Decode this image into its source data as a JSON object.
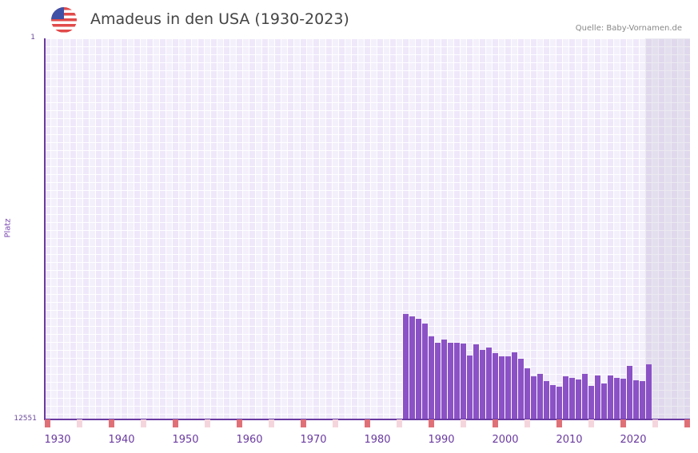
{
  "header": {
    "title": "Amadeus in den USA (1930-2023)",
    "source": "Quelle: Baby-Vornamen.de",
    "flag_icon": "us-flag-icon"
  },
  "axis": {
    "y_label": "Platz",
    "y_top": "1",
    "y_bottom": "12551",
    "x_ticks": [
      "1930",
      "1940",
      "1950",
      "1960",
      "1970",
      "1980",
      "1990",
      "2000",
      "2010",
      "2020"
    ]
  },
  "colors": {
    "bar": "#8b52c6",
    "axis": "#6a3aa0",
    "decade_mark": "#e07078",
    "half_decade_mark": "#f5d5dd",
    "plot_bg": "#f3eefb"
  },
  "chart_data": {
    "type": "bar",
    "title": "Amadeus in den USA (1930-2023)",
    "xlabel": "",
    "ylabel": "Platz",
    "ylim": [
      12551,
      1
    ],
    "y_inverted": true,
    "xlim": [
      1928,
      2028
    ],
    "grid": true,
    "legend": null,
    "x": [
      1984,
      1985,
      1986,
      1987,
      1988,
      1989,
      1990,
      1991,
      1992,
      1993,
      1994,
      1995,
      1996,
      1997,
      1998,
      1999,
      2000,
      2001,
      2002,
      2003,
      2004,
      2005,
      2006,
      2007,
      2008,
      2009,
      2010,
      2011,
      2012,
      2013,
      2014,
      2015,
      2016,
      2017,
      2018,
      2019,
      2020,
      2021,
      2022
    ],
    "values": [
      9065,
      9144,
      9223,
      9381,
      9802,
      10013,
      9907,
      10013,
      10013,
      10039,
      10434,
      10065,
      10250,
      10171,
      10355,
      10460,
      10460,
      10329,
      10539,
      10855,
      11118,
      11039,
      11276,
      11407,
      11460,
      11118,
      11171,
      11223,
      11039,
      11434,
      11092,
      11355,
      11092,
      11171,
      11197,
      10776,
      11249,
      11276,
      10723
    ]
  }
}
